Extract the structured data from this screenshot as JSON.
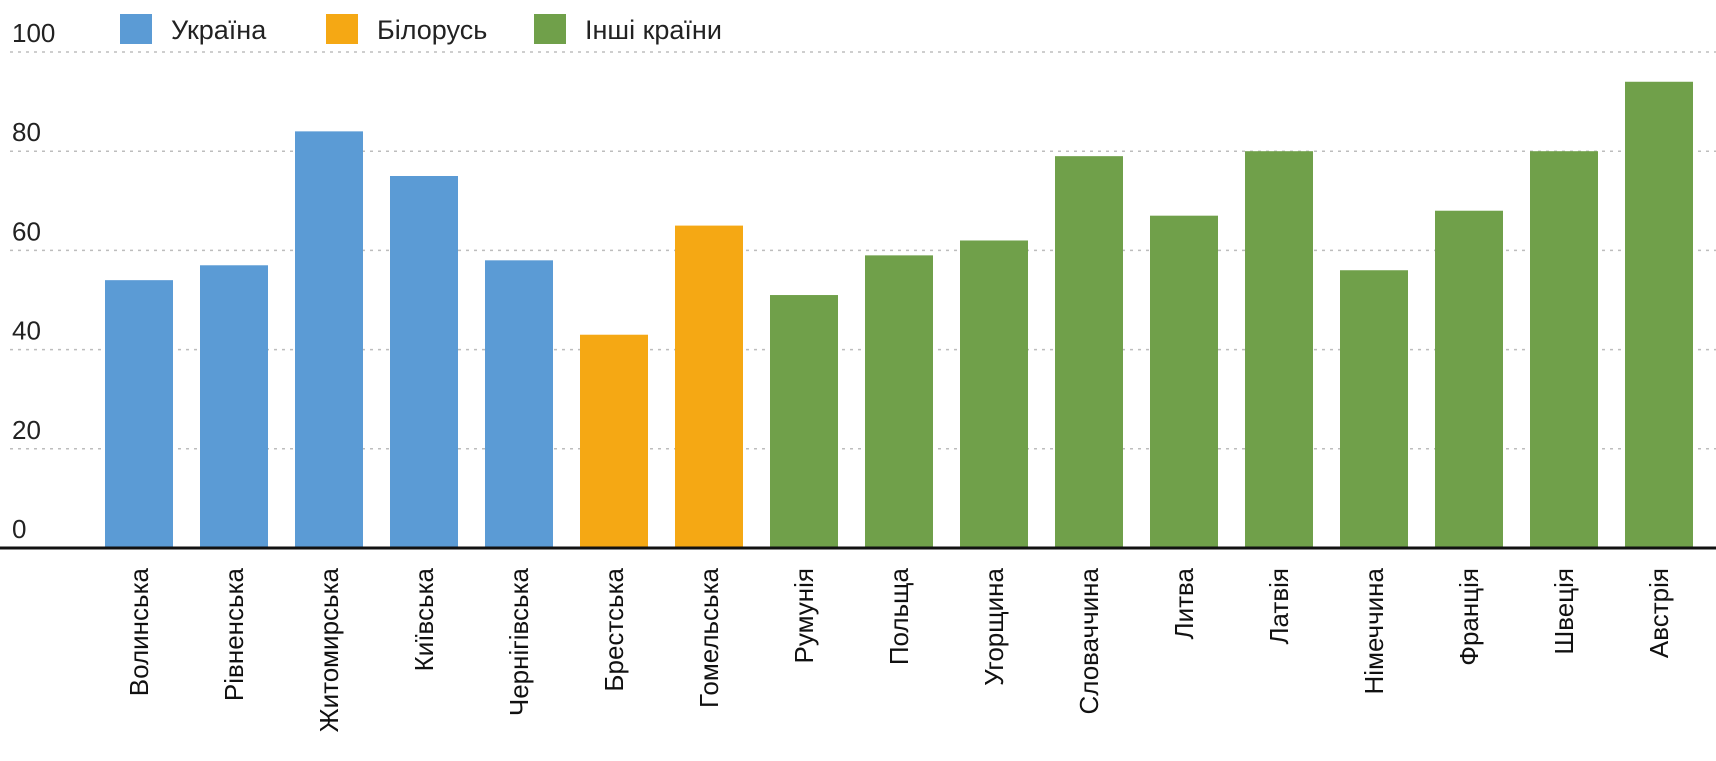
{
  "chart_data": {
    "type": "bar",
    "categories": [
      "Волинська",
      "Рівненська",
      "Житомирська",
      "Київська",
      "Чернігівська",
      "Брестська",
      "Гомельська",
      "Румунія",
      "Польща",
      "Угорщина",
      "Словаччина",
      "Литва",
      "Латвія",
      "Німеччина",
      "Франція",
      "Швеція",
      "Австрія"
    ],
    "values": [
      54,
      57,
      84,
      75,
      58,
      43,
      65,
      51,
      59,
      62,
      79,
      67,
      80,
      56,
      68,
      80,
      94
    ],
    "groups": [
      0,
      0,
      0,
      0,
      0,
      1,
      1,
      2,
      2,
      2,
      2,
      2,
      2,
      2,
      2,
      2,
      2
    ],
    "legend": [
      {
        "name": "Україна",
        "color": "#5b9bd5"
      },
      {
        "name": "Білорусь",
        "color": "#f5a814"
      },
      {
        "name": "Інші країни",
        "color": "#70a04a"
      }
    ],
    "yticks": [
      0,
      20,
      40,
      60,
      80,
      100
    ],
    "ylim": [
      0,
      100
    ],
    "grid": true,
    "legend_position": "top-left",
    "title": "",
    "xlabel": "",
    "ylabel": ""
  }
}
